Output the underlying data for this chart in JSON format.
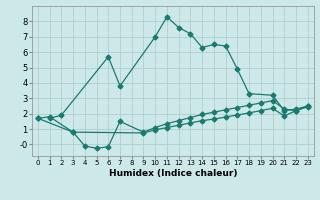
{
  "xlabel": "Humidex (Indice chaleur)",
  "background_color": "#cde8e8",
  "line_color": "#1a7a6e",
  "xlim": [
    -0.5,
    23.5
  ],
  "ylim": [
    -0.75,
    9.0
  ],
  "xticks": [
    0,
    1,
    2,
    3,
    4,
    5,
    6,
    7,
    8,
    9,
    10,
    11,
    12,
    13,
    14,
    15,
    16,
    17,
    18,
    19,
    20,
    21,
    22,
    23
  ],
  "yticks": [
    0,
    1,
    2,
    3,
    4,
    5,
    6,
    7,
    8
  ],
  "ytick_labels": [
    "-0",
    "1",
    "2",
    "3",
    "4",
    "5",
    "6",
    "7",
    "8"
  ],
  "series": [
    {
      "x": [
        1,
        2,
        6,
        7,
        10,
        11,
        12,
        13,
        14,
        15,
        16,
        17,
        18,
        20,
        21,
        22,
        23
      ],
      "y": [
        1.7,
        1.9,
        5.7,
        3.8,
        7.0,
        8.3,
        7.6,
        7.2,
        6.3,
        6.5,
        6.4,
        4.9,
        3.3,
        3.2,
        2.2,
        2.3,
        2.5
      ]
    },
    {
      "x": [
        0,
        1,
        3,
        4,
        5,
        6,
        7,
        9,
        10,
        11,
        12,
        13,
        14,
        15,
        16,
        17,
        18,
        19,
        20,
        21,
        22,
        23
      ],
      "y": [
        1.7,
        1.8,
        0.8,
        -0.1,
        -0.25,
        -0.15,
        1.5,
        0.8,
        1.1,
        1.35,
        1.55,
        1.75,
        1.95,
        2.1,
        2.25,
        2.4,
        2.55,
        2.7,
        2.85,
        2.3,
        2.2,
        2.5
      ]
    },
    {
      "x": [
        0,
        3,
        9,
        10,
        11,
        12,
        13,
        14,
        15,
        16,
        17,
        18,
        19,
        20,
        21,
        22,
        23
      ],
      "y": [
        1.7,
        0.8,
        0.75,
        0.95,
        1.1,
        1.25,
        1.4,
        1.55,
        1.65,
        1.78,
        1.92,
        2.05,
        2.2,
        2.35,
        1.85,
        2.2,
        2.45
      ]
    }
  ],
  "grid_color": "#adc8c8",
  "marker": "D",
  "markersize": 2.5,
  "linewidth": 0.9
}
